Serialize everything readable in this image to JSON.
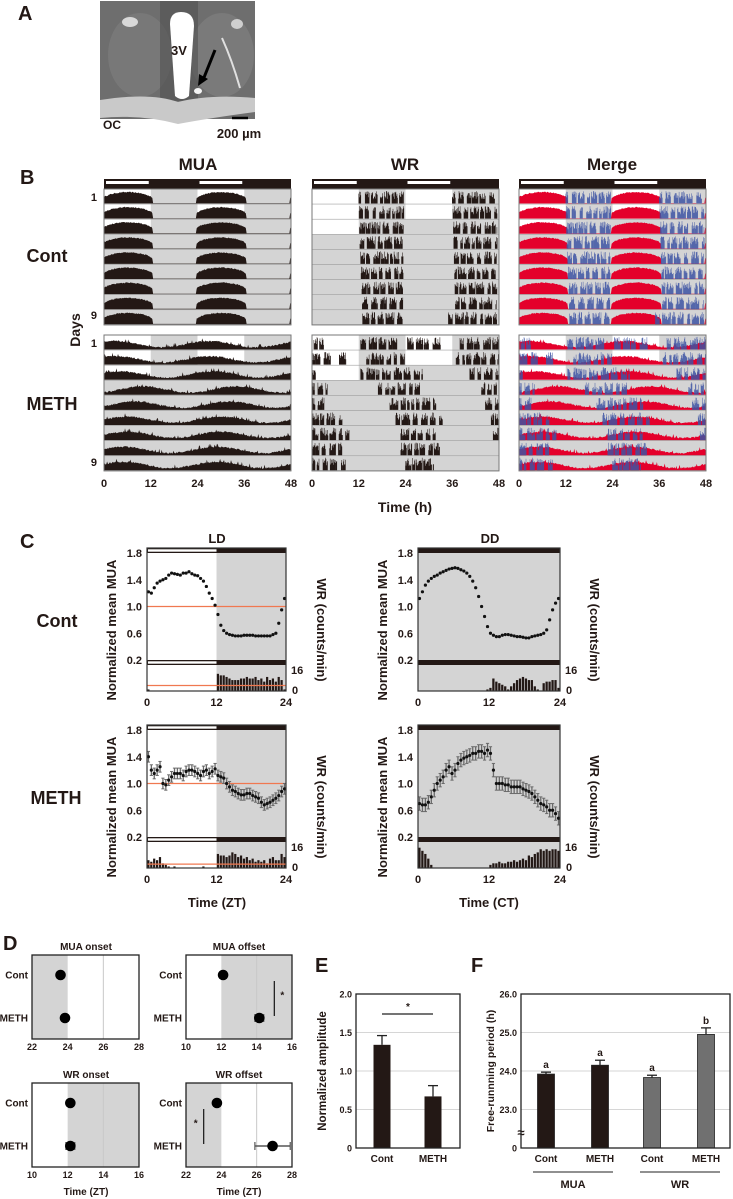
{
  "panel_labels": {
    "a": "A",
    "b": "B",
    "c": "C",
    "d": "D",
    "e": "E",
    "f": "F"
  },
  "panel_a": {
    "ventricle_label": "3V",
    "chiasm_label": "OC",
    "scale_bar": "200 µm"
  },
  "panel_b": {
    "headers": {
      "mua": "MUA",
      "wr": "WR",
      "merge": "Merge"
    },
    "groups": {
      "cont": "Cont",
      "meth": "METH"
    },
    "ylabel": "Days",
    "day_first": "1",
    "day_last": "9",
    "xlabel": "Time (h)",
    "xticks": [
      "0",
      "12",
      "24",
      "36",
      "48"
    ]
  },
  "panel_c": {
    "groups": {
      "cont": "Cont",
      "meth": "METH"
    }
  },
  "colors": {
    "black": "#231815",
    "dark_gray": "#707070",
    "shade": "#d4d4d4",
    "mua_merge": "#e4002b",
    "wr_merge": "#3d53a3",
    "reference_line": "#f07850"
  },
  "chart_data": [
    {
      "type": "actogram",
      "panel": "B",
      "hours": 48,
      "rows_per_group": 9,
      "light_periods_by_row": [
        [
          [
            0,
            12
          ],
          [
            24,
            36
          ]
        ],
        [
          [
            0,
            12
          ],
          [
            24,
            36
          ]
        ],
        [
          [
            0,
            12
          ]
        ]
      ],
      "mua_cont_active_window_h": [
        0,
        12.8
      ],
      "mua_meth_peak_phase_h": [
        3,
        3,
        4,
        10,
        8,
        6,
        6,
        5,
        5
      ],
      "wr_cont_intervals_h": [
        [
          [
            12,
            23.5
          ],
          [
            36,
            47.6
          ]
        ],
        [
          [
            12.1,
            23.6
          ],
          [
            36.2,
            47.6
          ]
        ],
        [
          [
            12.2,
            23.5
          ],
          [
            36.3,
            47.5
          ]
        ],
        [
          [
            12.3,
            23.4
          ],
          [
            36.4,
            47.6
          ]
        ],
        [
          [
            12.5,
            23.5
          ],
          [
            36.5,
            47.4
          ]
        ],
        [
          [
            12.6,
            23.4
          ],
          [
            36.6,
            47.5
          ]
        ],
        [
          [
            12.8,
            23.5
          ],
          [
            36.7,
            47.6
          ]
        ],
        [
          [
            12.9,
            23.4
          ],
          [
            36.8,
            47.4
          ]
        ],
        [
          [
            13,
            23.5
          ],
          [
            35,
            47.5
          ]
        ]
      ],
      "wr_meth_intervals_h": [
        [
          [
            0.5,
            3
          ],
          [
            12.5,
            22
          ],
          [
            24.5,
            33
          ],
          [
            38,
            48
          ]
        ],
        [
          [
            0,
            5
          ],
          [
            7,
            9
          ],
          [
            14,
            24
          ],
          [
            37,
            48
          ]
        ],
        [
          [
            0,
            1
          ],
          [
            12.5,
            28.5
          ],
          [
            40.5,
            48
          ]
        ],
        [
          [
            0,
            4
          ],
          [
            17,
            27.7
          ],
          [
            43.5,
            48
          ]
        ],
        [
          [
            0,
            3.5
          ],
          [
            20,
            31.8
          ],
          [
            44.5,
            48
          ]
        ],
        [
          [
            0,
            7.8
          ],
          [
            21.5,
            33.6
          ],
          [
            46,
            48
          ]
        ],
        [
          [
            0,
            9.6
          ],
          [
            22.8,
            31.8
          ],
          [
            46.5,
            48
          ]
        ],
        [
          [
            0,
            7.8
          ],
          [
            22.8,
            32.8
          ]
        ],
        [
          [
            0,
            8.8
          ],
          [
            24,
            31.3
          ]
        ]
      ]
    },
    {
      "type": "scatter",
      "panel": "C",
      "condition": "LD",
      "group": "Cont",
      "title": "LD",
      "ylabel": "Normalized mean MUA",
      "y2label": "WR (counts/min)",
      "ylim": [
        0.2,
        1.8
      ],
      "yticks": [
        "1.8",
        "1.4",
        "1.0",
        "0.6",
        "0.2"
      ],
      "y2ticks": [
        "16",
        "0"
      ],
      "xticks": [
        "0",
        "12",
        "24"
      ],
      "reference_mua": 1.0,
      "reference_wr": 3.5,
      "mua": [
        1.22,
        1.2,
        1.28,
        1.35,
        1.38,
        1.4,
        1.42,
        1.47,
        1.5,
        1.49,
        1.48,
        1.47,
        1.5,
        1.5,
        1.52,
        1.49,
        1.47,
        1.46,
        1.42,
        1.38,
        1.3,
        1.2,
        1.12,
        1.02,
        0.88,
        0.72,
        0.64,
        0.6,
        0.58,
        0.57,
        0.56,
        0.56,
        0.56,
        0.57,
        0.57,
        0.57,
        0.57,
        0.56,
        0.56,
        0.56,
        0.56,
        0.56,
        0.56,
        0.58,
        0.6,
        0.75,
        0.95,
        1.12
      ],
      "mua_sem": 0.01,
      "wr": [
        1,
        0,
        0,
        0,
        0,
        0,
        0,
        0,
        0,
        0,
        0,
        0,
        0,
        0,
        0,
        0,
        0,
        0,
        0,
        0,
        0,
        0,
        0,
        0,
        11,
        10,
        10,
        9,
        8,
        7,
        7,
        7,
        8,
        8,
        9,
        8,
        8,
        9,
        7,
        8,
        6,
        9,
        7,
        8,
        6,
        9,
        7,
        1
      ]
    },
    {
      "type": "scatter",
      "panel": "C",
      "condition": "DD",
      "group": "Cont",
      "title": "DD",
      "ylabel": "Normalized mean MUA",
      "y2label": "WR (counts/min)",
      "ylim": [
        0.2,
        1.8
      ],
      "yticks": [
        "1.8",
        "1.4",
        "1.0",
        "0.6",
        "0.2"
      ],
      "y2ticks": [
        "16",
        "0"
      ],
      "xticks": [
        "0",
        "12",
        "24"
      ],
      "mua": [
        1.12,
        1.22,
        1.32,
        1.38,
        1.42,
        1.45,
        1.47,
        1.5,
        1.52,
        1.54,
        1.56,
        1.57,
        1.58,
        1.57,
        1.55,
        1.53,
        1.5,
        1.45,
        1.38,
        1.28,
        1.15,
        1.0,
        0.85,
        0.7,
        0.6,
        0.57,
        0.55,
        0.55,
        0.57,
        0.58,
        0.58,
        0.57,
        0.56,
        0.55,
        0.55,
        0.54,
        0.53,
        0.53,
        0.55,
        0.56,
        0.57,
        0.58,
        0.6,
        0.65,
        0.8,
        0.95,
        1.05,
        1.12
      ],
      "mua_sem": 0.015,
      "wr": [
        0,
        0,
        0,
        0,
        0,
        0,
        0,
        0,
        0,
        0,
        0,
        0,
        0,
        0,
        0,
        0,
        0,
        0,
        0,
        0,
        0,
        0,
        0,
        1,
        2,
        8,
        6,
        5,
        4,
        3,
        1,
        3,
        5,
        7,
        8,
        9,
        8,
        7,
        7,
        3,
        1,
        0,
        5,
        6,
        6,
        7,
        7,
        2
      ]
    },
    {
      "type": "scatter",
      "panel": "C",
      "condition": "LD",
      "group": "METH",
      "ylabel": "Normalized mean MUA",
      "y2label": "WR (counts/min)",
      "xlabel": "Time (ZT)",
      "ylim": [
        0.2,
        1.8
      ],
      "yticks": [
        "1.8",
        "1.4",
        "1.0",
        "0.6",
        "0.2"
      ],
      "y2ticks": [
        "16",
        "0"
      ],
      "xticks": [
        "0",
        "12",
        "24"
      ],
      "reference_mua": 1.0,
      "reference_wr": 2.5,
      "mua": [
        1.4,
        1.2,
        1.15,
        1.2,
        1.25,
        1.0,
        0.98,
        1.05,
        1.1,
        1.15,
        1.15,
        1.15,
        1.12,
        1.18,
        1.2,
        1.2,
        1.18,
        1.15,
        1.12,
        1.18,
        1.2,
        1.15,
        1.18,
        1.22,
        1.12,
        1.1,
        1.08,
        1.0,
        0.95,
        0.9,
        0.88,
        0.85,
        0.83,
        0.83,
        0.85,
        0.85,
        0.82,
        0.8,
        0.78,
        0.72,
        0.68,
        0.7,
        0.72,
        0.75,
        0.78,
        0.82,
        0.88,
        0.92
      ],
      "mua_sem": 0.08,
      "wr": [
        5,
        4,
        6,
        5,
        7,
        3,
        2,
        1,
        0,
        1,
        0,
        0,
        0,
        0,
        0,
        0,
        0,
        0,
        0,
        1,
        0,
        0,
        0,
        0,
        9,
        8,
        8,
        7,
        8,
        10,
        9,
        7,
        8,
        6,
        7,
        5,
        6,
        4,
        5,
        4,
        5,
        3,
        6,
        7,
        5,
        5,
        9,
        7
      ]
    },
    {
      "type": "scatter",
      "panel": "C",
      "condition": "DD",
      "group": "METH",
      "ylabel": "Normalized mean MUA",
      "y2label": "WR (counts/min)",
      "xlabel": "Time (CT)",
      "ylim": [
        0.2,
        1.8
      ],
      "yticks": [
        "1.8",
        "1.4",
        "1.0",
        "0.6",
        "0.2"
      ],
      "y2ticks": [
        "16",
        "0"
      ],
      "xticks": [
        "0",
        "12",
        "24"
      ],
      "mua": [
        0.7,
        0.68,
        0.68,
        0.72,
        0.8,
        0.9,
        1.0,
        1.05,
        1.1,
        1.2,
        1.25,
        1.15,
        1.2,
        1.3,
        1.35,
        1.38,
        1.4,
        1.42,
        1.45,
        1.45,
        1.48,
        1.48,
        1.45,
        1.5,
        1.45,
        1.2,
        1.0,
        1.0,
        1.0,
        0.98,
        0.98,
        0.95,
        0.95,
        0.95,
        0.95,
        0.92,
        0.9,
        0.88,
        0.85,
        0.8,
        0.75,
        0.7,
        0.68,
        0.65,
        0.6,
        0.6,
        0.55,
        0.48
      ],
      "mua_sem": 0.1,
      "wr": [
        13,
        11,
        9,
        6,
        2,
        0,
        0,
        0,
        0,
        0,
        0,
        0,
        0,
        0,
        0,
        0,
        0,
        0,
        0,
        0,
        0,
        0,
        0,
        0,
        2,
        3,
        3,
        4,
        3,
        3,
        4,
        4,
        5,
        4,
        5,
        6,
        5,
        8,
        7,
        9,
        10,
        12,
        11,
        12,
        11,
        12,
        12,
        11
      ]
    },
    {
      "type": "scatter",
      "panel": "D",
      "title": "MUA onset",
      "xlim": [
        22,
        28
      ],
      "xticks": [
        "22",
        "24",
        "26",
        "28"
      ],
      "shaded": [
        22,
        24
      ],
      "grid": [
        26
      ],
      "categories": [
        "Cont",
        "METH"
      ],
      "means": [
        23.6,
        23.85
      ],
      "errors": [
        0.15,
        0.1
      ]
    },
    {
      "type": "scatter",
      "panel": "D",
      "title": "MUA offset",
      "xlim": [
        10,
        16
      ],
      "xticks": [
        "10",
        "12",
        "14",
        "16"
      ],
      "shaded": [
        12,
        16
      ],
      "grid": [
        14
      ],
      "categories": [
        "Cont",
        "METH"
      ],
      "means": [
        12.1,
        14.15
      ],
      "errors": [
        0.1,
        0.25
      ],
      "significance": "*",
      "sig_x": 15
    },
    {
      "type": "scatter",
      "panel": "D",
      "title": "WR onset",
      "xlim": [
        10,
        16
      ],
      "xticks": [
        "10",
        "12",
        "14",
        "16"
      ],
      "shaded": [
        12,
        16
      ],
      "grid": [
        14
      ],
      "categories": [
        "Cont",
        "METH"
      ],
      "means": [
        12.15,
        12.15
      ],
      "errors": [
        0.1,
        0.25
      ],
      "xlabel": "Time (ZT)"
    },
    {
      "type": "scatter",
      "panel": "D",
      "title": "WR offset",
      "xlim": [
        22,
        28
      ],
      "xticks": [
        "22",
        "24",
        "26",
        "28"
      ],
      "shaded": [
        22,
        24
      ],
      "grid": [
        26
      ],
      "categories": [
        "Cont",
        "METH"
      ],
      "means": [
        23.75,
        26.9
      ],
      "errors": [
        0.15,
        1.0
      ],
      "significance": "*",
      "sig_x": 23,
      "xlabel": "Time (ZT)"
    },
    {
      "type": "bar",
      "panel": "E",
      "ylabel": "Normalized amplitude",
      "ylim": [
        0,
        2.0
      ],
      "yticks": [
        "0",
        "0.5",
        "1.0",
        "1.5",
        "2.0"
      ],
      "categories": [
        "Cont",
        "METH"
      ],
      "values": [
        1.34,
        0.67
      ],
      "errors": [
        0.12,
        0.14
      ],
      "significance": "*"
    },
    {
      "type": "bar",
      "panel": "F",
      "ylabel": "Free-runnning period (h)",
      "ylim": [
        22,
        26
      ],
      "yticks": [
        "0",
        "23.0",
        "24.0",
        "25.0",
        "26.0"
      ],
      "axis_break": "≈",
      "groups": [
        "MUA",
        "WR"
      ],
      "categories": [
        "Cont",
        "METH",
        "Cont",
        "METH"
      ],
      "values": [
        23.92,
        24.15,
        23.83,
        24.95
      ],
      "errors": [
        0.05,
        0.13,
        0.06,
        0.17
      ],
      "letters": [
        "a",
        "a",
        "a",
        "b"
      ]
    }
  ]
}
